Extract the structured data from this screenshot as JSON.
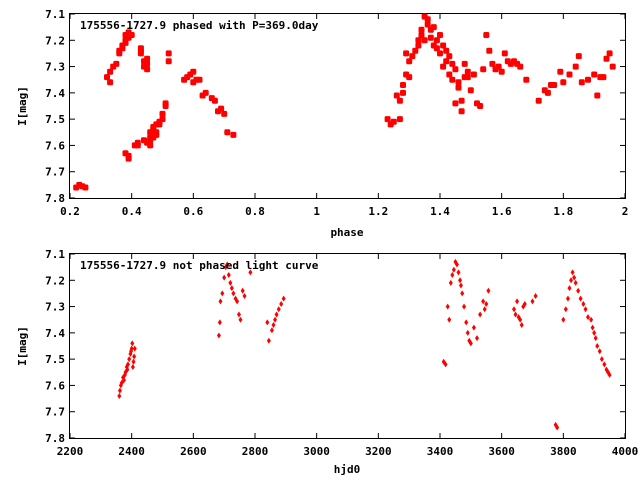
{
  "colors": {
    "points": "#ff0000",
    "frame": "#000000",
    "background": "#ffffff"
  },
  "chart_data": [
    {
      "type": "scatter",
      "title": "175556-1727.9 phased with P=369.0day",
      "xlabel": "phase",
      "ylabel": "I[mag]",
      "xlim": [
        0.2,
        2.0
      ],
      "ylim": [
        7.1,
        7.8
      ],
      "y_inverted": true,
      "grid": false,
      "marker": "filled square-ish",
      "x_ticks": [
        "0.2",
        "0.4",
        "0.6",
        "0.8",
        "1",
        "1.2",
        "1.4",
        "1.6",
        "1.8",
        "2"
      ],
      "y_ticks": [
        "7.1",
        "7.2",
        "7.3",
        "7.4",
        "7.5",
        "7.6",
        "7.7",
        "7.8"
      ],
      "series": [
        {
          "x": [
            0.22,
            0.23,
            0.24,
            0.25,
            0.32,
            0.33,
            0.33,
            0.34,
            0.35,
            0.36,
            0.36,
            0.37,
            0.37,
            0.38,
            0.38,
            0.38,
            0.39,
            0.39,
            0.4,
            0.38,
            0.39,
            0.39,
            0.41,
            0.42,
            0.42,
            0.43,
            0.43,
            0.44,
            0.44,
            0.45,
            0.45,
            0.45,
            0.46,
            0.46,
            0.46,
            0.47,
            0.47,
            0.47,
            0.48,
            0.48,
            0.49,
            0.49,
            0.5,
            0.5,
            0.51,
            0.51,
            0.52,
            0.52,
            0.43,
            0.44,
            0.45,
            0.46,
            0.47,
            0.48,
            0.57,
            0.58,
            0.59,
            0.6,
            0.6,
            0.61,
            0.62,
            0.63,
            0.64,
            0.66,
            0.67,
            0.68,
            0.69,
            0.7,
            0.71,
            0.73
          ],
          "y": [
            7.76,
            7.75,
            7.755,
            7.76,
            7.34,
            7.36,
            7.32,
            7.3,
            7.29,
            7.24,
            7.25,
            7.23,
            7.22,
            7.2,
            7.18,
            7.21,
            7.17,
            7.19,
            7.18,
            7.63,
            7.64,
            7.65,
            7.6,
            7.59,
            7.6,
            7.23,
            7.24,
            7.28,
            7.3,
            7.29,
            7.27,
            7.31,
            7.57,
            7.55,
            7.58,
            7.53,
            7.56,
            7.54,
            7.55,
            7.52,
            7.52,
            7.51,
            7.48,
            7.5,
            7.45,
            7.44,
            7.25,
            7.28,
            7.25,
            7.58,
            7.59,
            7.6,
            7.57,
            7.56,
            7.35,
            7.34,
            7.33,
            7.32,
            7.36,
            7.35,
            7.35,
            7.41,
            7.4,
            7.42,
            7.43,
            7.47,
            7.46,
            7.48,
            7.55,
            7.56
          ]
        },
        {
          "x": [
            1.23,
            1.24,
            1.25,
            1.26,
            1.27,
            1.27,
            1.28,
            1.28,
            1.29,
            1.29,
            1.3,
            1.3,
            1.31,
            1.32,
            1.33,
            1.33,
            1.34,
            1.34,
            1.35,
            1.35,
            1.36,
            1.36,
            1.37,
            1.37,
            1.38,
            1.38,
            1.39,
            1.39,
            1.4,
            1.4,
            1.41,
            1.41,
            1.42,
            1.42,
            1.43,
            1.43,
            1.44,
            1.44,
            1.45,
            1.45,
            1.46,
            1.46,
            1.47,
            1.47,
            1.48,
            1.48,
            1.49,
            1.49,
            1.5,
            1.51,
            1.52,
            1.53,
            1.54,
            1.55,
            1.56,
            1.57,
            1.58,
            1.59,
            1.6,
            1.61,
            1.62,
            1.63,
            1.64,
            1.65,
            1.66,
            1.68,
            1.72,
            1.74,
            1.75,
            1.76,
            1.77,
            1.79,
            1.8,
            1.82,
            1.84,
            1.85,
            1.86,
            1.88,
            1.9,
            1.91,
            1.92,
            1.93,
            1.94,
            1.95,
            1.96
          ],
          "y": [
            7.5,
            7.52,
            7.51,
            7.41,
            7.5,
            7.43,
            7.37,
            7.4,
            7.33,
            7.25,
            7.28,
            7.34,
            7.26,
            7.24,
            7.2,
            7.22,
            7.18,
            7.16,
            7.11,
            7.2,
            7.12,
            7.14,
            7.16,
            7.19,
            7.15,
            7.22,
            7.2,
            7.23,
            7.25,
            7.18,
            7.22,
            7.3,
            7.28,
            7.24,
            7.26,
            7.33,
            7.35,
            7.29,
            7.31,
            7.44,
            7.38,
            7.36,
            7.43,
            7.47,
            7.34,
            7.29,
            7.32,
            7.34,
            7.39,
            7.33,
            7.44,
            7.45,
            7.31,
            7.18,
            7.24,
            7.29,
            7.31,
            7.3,
            7.32,
            7.25,
            7.28,
            7.29,
            7.28,
            7.29,
            7.3,
            7.35,
            7.43,
            7.39,
            7.4,
            7.37,
            7.37,
            7.32,
            7.36,
            7.33,
            7.3,
            7.26,
            7.36,
            7.35,
            7.33,
            7.41,
            7.34,
            7.34,
            7.27,
            7.25,
            7.3
          ]
        }
      ]
    },
    {
      "type": "scatter",
      "title": "175556-1727.9 not phased light curve",
      "xlabel": "hjd0",
      "ylabel": "I[mag]",
      "xlim": [
        2200,
        4000
      ],
      "ylim": [
        7.1,
        7.8
      ],
      "y_inverted": true,
      "grid": false,
      "marker": "small filled diamond",
      "x_ticks": [
        "2200",
        "2400",
        "2600",
        "2800",
        "3000",
        "3200",
        "3400",
        "3600",
        "3800",
        "4000"
      ],
      "y_ticks": [
        "7.1",
        "7.2",
        "7.3",
        "7.4",
        "7.5",
        "7.6",
        "7.7",
        "7.8"
      ],
      "series": [
        {
          "x": [
            2360,
            2362,
            2365,
            2368,
            2372,
            2375,
            2378,
            2380,
            2384,
            2386,
            2388,
            2392,
            2396,
            2398,
            2400,
            2402,
            2404,
            2406,
            2408,
            2410,
            2683,
            2686,
            2688,
            2694,
            2700,
            2705,
            2710,
            2715,
            2720,
            2725,
            2730,
            2737,
            2742,
            2748,
            2753,
            2760,
            2766,
            2785,
            2840,
            2845,
            2855,
            2860,
            2865,
            2870,
            2877,
            2885,
            2893,
            3412,
            3418,
            3425,
            3430,
            3435,
            3440,
            3445,
            3450,
            3455,
            3460,
            3465,
            3468,
            3472,
            3478,
            3485,
            3490,
            3495,
            3500,
            3510,
            3520,
            3530,
            3540,
            3545,
            3550,
            3557,
            3640,
            3645,
            3650,
            3655,
            3660,
            3665,
            3670,
            3675,
            3700,
            3710,
            3775,
            3780,
            3800,
            3808,
            3815,
            3820,
            3825,
            3830,
            3835,
            3840,
            3848,
            3856,
            3865,
            3872,
            3880,
            3890,
            3895,
            3900,
            3905,
            3910,
            3918,
            3925,
            3933,
            3940,
            3945,
            3950
          ],
          "y": [
            7.64,
            7.62,
            7.6,
            7.59,
            7.57,
            7.58,
            7.56,
            7.55,
            7.53,
            7.54,
            7.52,
            7.5,
            7.48,
            7.47,
            7.46,
            7.44,
            7.53,
            7.51,
            7.49,
            7.46,
            7.41,
            7.36,
            7.28,
            7.25,
            7.19,
            7.15,
            7.14,
            7.18,
            7.21,
            7.23,
            7.25,
            7.27,
            7.28,
            7.33,
            7.35,
            7.24,
            7.26,
            7.17,
            7.36,
            7.43,
            7.39,
            7.37,
            7.35,
            7.33,
            7.31,
            7.29,
            7.27,
            7.51,
            7.52,
            7.3,
            7.35,
            7.21,
            7.18,
            7.16,
            7.13,
            7.14,
            7.17,
            7.2,
            7.22,
            7.25,
            7.3,
            7.36,
            7.4,
            7.43,
            7.44,
            7.38,
            7.42,
            7.33,
            7.28,
            7.31,
            7.29,
            7.24,
            7.31,
            7.33,
            7.28,
            7.34,
            7.35,
            7.37,
            7.3,
            7.29,
            7.28,
            7.26,
            7.75,
            7.76,
            7.35,
            7.31,
            7.27,
            7.23,
            7.2,
            7.17,
            7.19,
            7.21,
            7.24,
            7.27,
            7.29,
            7.31,
            7.34,
            7.35,
            7.38,
            7.4,
            7.42,
            7.45,
            7.47,
            7.5,
            7.52,
            7.54,
            7.55,
            7.56
          ]
        }
      ]
    }
  ]
}
